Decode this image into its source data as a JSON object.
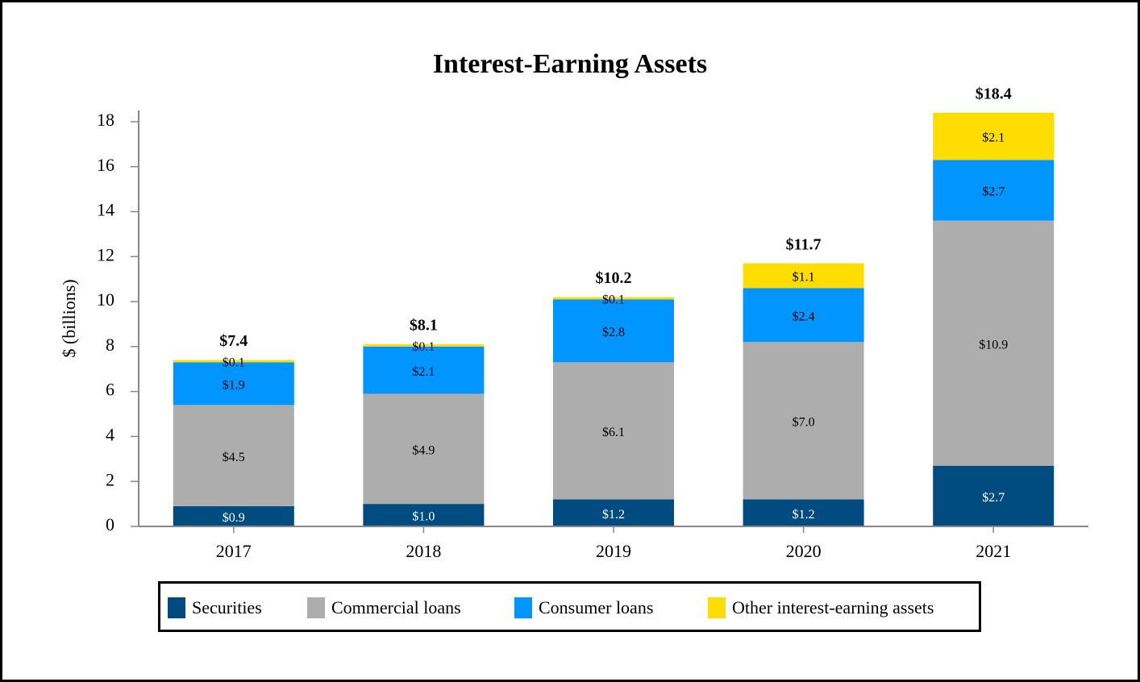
{
  "chart_data": {
    "type": "stacked-bar",
    "title": "Interest-Earning Assets",
    "y_label": "$ (billions)",
    "categories": [
      "2017",
      "2018",
      "2019",
      "2020",
      "2021"
    ],
    "series": [
      {
        "name": "Securities",
        "color": "#004b80",
        "values": [
          0.9,
          1.0,
          1.2,
          1.2,
          2.7
        ],
        "value_labels": [
          "$0.9",
          "$1.0",
          "$1.2",
          "$1.2",
          "$2.7"
        ]
      },
      {
        "name": "Commercial loans",
        "color": "#adadad",
        "values": [
          4.5,
          4.9,
          6.1,
          7.0,
          10.9
        ],
        "value_labels": [
          "$4.5",
          "$4.9",
          "$6.1",
          "$7.0",
          "$10.9"
        ]
      },
      {
        "name": "Consumer loans",
        "color": "#0095ff",
        "values": [
          1.9,
          2.1,
          2.8,
          2.4,
          2.7
        ],
        "value_labels": [
          "$1.9",
          "$2.1",
          "$2.8",
          "$2.4",
          "$2.7"
        ]
      },
      {
        "name": "Other interest-earning assets",
        "color": "#ffdd00",
        "values": [
          0.1,
          0.1,
          0.1,
          1.1,
          2.1
        ],
        "value_labels": [
          "$0.1",
          "$0.1",
          "$0.1",
          "$1.1",
          "$2.1"
        ]
      }
    ],
    "totals": [
      7.4,
      8.1,
      10.2,
      11.7,
      18.4
    ],
    "total_labels": [
      "$7.4",
      "$8.1",
      "$10.2",
      "$11.7",
      "$18.4"
    ],
    "ylim": [
      0,
      18.5
    ],
    "yticks": [
      0,
      2,
      4,
      6,
      8,
      10,
      12,
      14,
      16,
      18
    ]
  }
}
